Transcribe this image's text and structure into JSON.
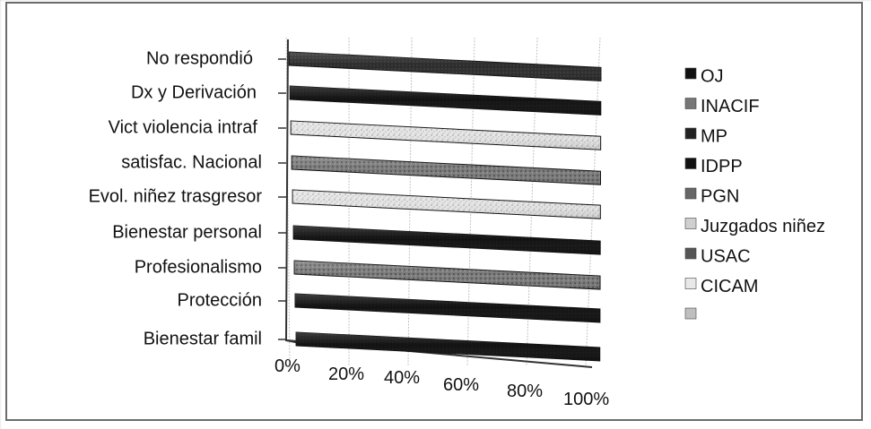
{
  "chart_data": {
    "type": "bar",
    "orientation": "horizontal",
    "stacked": "100%",
    "title": "",
    "xlabel": "",
    "ylabel": "",
    "xlim": [
      0,
      100
    ],
    "x_ticks": [
      "0%",
      "20%",
      "40%",
      "60%",
      "80%",
      "100%"
    ],
    "grid": true,
    "legend_position": "right",
    "categories": [
      "No respondió",
      "Dx y Derivación",
      "Vict violencia intraf",
      "satisfac. Nacional",
      "Evol. niñez trasgresor",
      "Bienestar personal",
      "Profesionalismo",
      "Protección",
      "Bienestar famil"
    ],
    "legend": [
      "OJ",
      "INACIF",
      "MP",
      "IDPP",
      "PGN",
      "Juzgados niñez",
      "USAC",
      "CICAM",
      ""
    ],
    "series": [
      {
        "name": "",
        "category": "No respondió",
        "value": 100,
        "color": "#262626",
        "pattern": "dark"
      },
      {
        "name": "",
        "category": "Dx y Derivación",
        "value": 100,
        "color": "#111111",
        "pattern": "black"
      },
      {
        "name": "",
        "category": "Vict violencia intraf",
        "value": 100,
        "color": "#d9d9d9",
        "pattern": "light"
      },
      {
        "name": "",
        "category": "satisfac. Nacional",
        "value": 100,
        "color": "#555555",
        "pattern": "medium"
      },
      {
        "name": "",
        "category": "Evol. niñez trasgresor",
        "value": 100,
        "color": "#dcdcdc",
        "pattern": "light"
      },
      {
        "name": "",
        "category": "Bienestar personal",
        "value": 100,
        "color": "#151515",
        "pattern": "black"
      },
      {
        "name": "",
        "category": "Profesionalismo",
        "value": 100,
        "color": "#777777",
        "pattern": "medium"
      },
      {
        "name": "",
        "category": "Protección",
        "value": 100,
        "color": "#121212",
        "pattern": "black"
      },
      {
        "name": "",
        "category": "Bienestar famil",
        "value": 100,
        "color": "#101010",
        "pattern": "black"
      }
    ],
    "legend_colors": [
      "#111111",
      "#777777",
      "#222222",
      "#111111",
      "#666666",
      "#cfcfcf",
      "#555555",
      "#e8e8e8",
      "#bfbfbf"
    ]
  }
}
